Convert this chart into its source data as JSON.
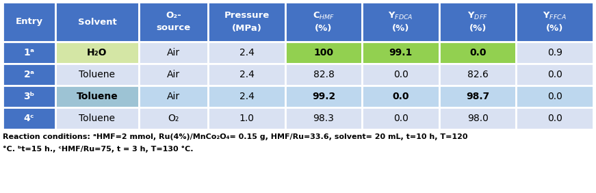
{
  "header_bg": "#4472C4",
  "header_text_color": "#FFFFFF",
  "entry_col_bg": "#4472C4",
  "row1_bg": "#D9E1F2",
  "row2_bg": "#D9E1F2",
  "row3_bg": "#BDD7EE",
  "row4_bg": "#D9E1F2",
  "green_bright": "#92D050",
  "green_solvent_r1": "#D4E6A5",
  "blue_solvent_r3": "#9DC3D4",
  "footnote_line1": "Reaction conditions: ᵃHMF=2 mmol, Ru(4%)/MnCo₂O₄= 0.15 g, HMF/Ru=33.6, solvent= 20 mL, t=10 h, T=120",
  "footnote_line2": "°C. ᵇt=15 h., ᶜHMF/Ru=75, t = 3 h, T=130 °C.",
  "rows": [
    {
      "entry": "1ᵃ",
      "solvent": "H₂O",
      "o2src": "Air",
      "pressure": "2.4",
      "chmf": "100",
      "yfdca": "99.1",
      "ydff": "0.0",
      "yffca": "0.9"
    },
    {
      "entry": "2ᵃ",
      "solvent": "Toluene",
      "o2src": "Air",
      "pressure": "2.4",
      "chmf": "82.8",
      "yfdca": "0.0",
      "ydff": "82.6",
      "yffca": "0.0"
    },
    {
      "entry": "3ᵇ",
      "solvent": "Toluene",
      "o2src": "Air",
      "pressure": "2.4",
      "chmf": "99.2",
      "yfdca": "0.0",
      "ydff": "98.7",
      "yffca": "0.0"
    },
    {
      "entry": "4ᶜ",
      "solvent": "Toluene",
      "o2src": "O₂",
      "pressure": "1.0",
      "chmf": "98.3",
      "yfdca": "0.0",
      "ydff": "98.0",
      "yffca": "0.0"
    }
  ],
  "figsize": [
    8.71,
    2.82
  ],
  "dpi": 100
}
